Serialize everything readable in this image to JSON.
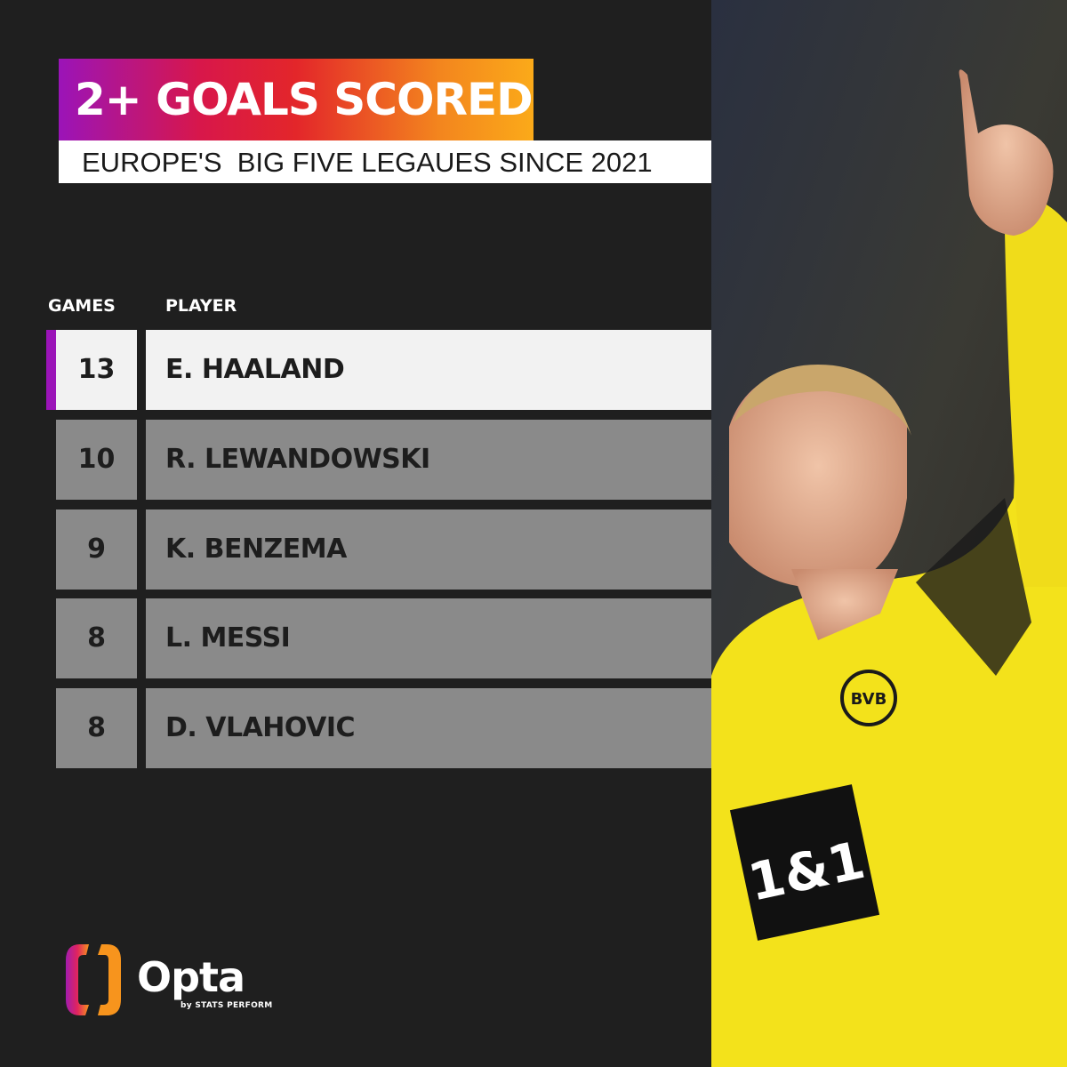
{
  "header": {
    "title": "2+ GOALS SCORED",
    "subtitle": "EUROPE'S  BIG FIVE LEGAUES SINCE 2021",
    "title_gradient": [
      "#9b14b8",
      "#e3262a",
      "#fbaa19"
    ]
  },
  "table": {
    "columns": [
      "GAMES",
      "PLAYER"
    ],
    "rows": [
      {
        "games": "13",
        "player": "E. HAALAND",
        "highlighted": true
      },
      {
        "games": "10",
        "player": "R. LEWANDOWSKI",
        "highlighted": false
      },
      {
        "games": "9",
        "player": "K. BENZEMA",
        "highlighted": false
      },
      {
        "games": "8",
        "player": "L. MESSI",
        "highlighted": false
      },
      {
        "games": "8",
        "player": "D. VLAHOVIC",
        "highlighted": false
      }
    ],
    "highlight_color": "#9b14b8"
  },
  "branding": {
    "logo_name": "Opta",
    "tagline": "by STATS PERFORM"
  },
  "photo": {
    "shirt_sponsor": "1&1",
    "crest": "BVB 09"
  }
}
